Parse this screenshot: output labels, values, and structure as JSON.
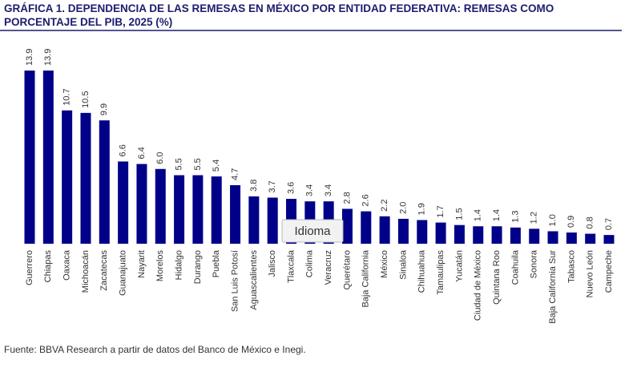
{
  "chart_data": {
    "type": "bar",
    "title_lines": [
      "GRÁFICA 1. DEPENDENCIA DE LAS REMESAS EN MÉXICO POR ENTIDAD FEDERATIVA: REMESAS COMO",
      "PORCENTAJE DEL PIB, 2025 (%)"
    ],
    "categories": [
      "Guerrero",
      "Chiapas",
      "Oaxaca",
      "Michoacán",
      "Zacatecas",
      "Guanajuato",
      "Nayarit",
      "Morelos",
      "Hidalgo",
      "Durango",
      "Puebla",
      "San Luis Potosí",
      "Aguascalientes",
      "Jalisco",
      "Tlaxcala",
      "Colima",
      "Veracruz",
      "Querétaro",
      "Baja California",
      "México",
      "Sinaloa",
      "Chihuahua",
      "Tamaulipas",
      "Yucatán",
      "Ciudad de México",
      "Quintana Roo",
      "Coahuila",
      "Sonora",
      "Baja California Sur",
      "Tabasco",
      "Nuevo León",
      "Campeche"
    ],
    "values": [
      13.9,
      13.9,
      10.7,
      10.5,
      9.9,
      6.6,
      6.4,
      6.0,
      5.5,
      5.5,
      5.4,
      4.7,
      3.8,
      3.7,
      3.6,
      3.4,
      3.4,
      2.8,
      2.6,
      2.2,
      2.0,
      1.9,
      1.7,
      1.5,
      1.4,
      1.4,
      1.3,
      1.2,
      1.0,
      0.9,
      0.8,
      0.7
    ],
    "value_labels": [
      "13.9",
      "13.9",
      "10.7",
      "10.5",
      "9.9",
      "6.6",
      "6.4",
      "6.0",
      "5.5",
      "5.5",
      "5.4",
      "4.7",
      "3.8",
      "3.7",
      "3.6",
      "3.4",
      "3.4",
      "2.8",
      "2.6",
      "2.2",
      "2.0",
      "1.9",
      "1.7",
      "1.5",
      "1.4",
      "1.4",
      "1.3",
      "1.2",
      "1.0",
      "0.9",
      "0.8",
      "0.7"
    ],
    "color": "#000088",
    "source": "Fuente: BBVA Research a partir de datos del Banco de México e Inegi.",
    "tooltip": "Idioma"
  }
}
